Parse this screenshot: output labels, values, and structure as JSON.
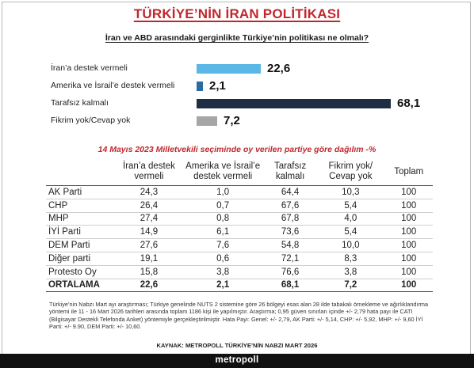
{
  "title": "TÜRKİYE’NİN İRAN POLİTİKASI",
  "question": "İran ve ABD arasındaki gerginlikte Türkiye’nin politikası ne olmalı?",
  "chart_data": [
    {
      "type": "bar",
      "orientation": "horizontal",
      "categories": [
        "İran’a destek vermeli",
        "Amerika ve İsrail’e destek vermeli",
        "Tarafsız kalmalı",
        "Fikrim yok/Cevap yok"
      ],
      "values": [
        22.6,
        2.1,
        68.1,
        7.2
      ],
      "value_labels": [
        "22,6",
        "2,1",
        "68,1",
        "7,2"
      ],
      "colors": [
        "#5bb7e5",
        "#2c6aa3",
        "#1d2e44",
        "#a6a6a6"
      ],
      "xlim": [
        0,
        70
      ],
      "grid": false,
      "legend": "none"
    },
    {
      "type": "table",
      "title": "14 Mayıs 2023 Milletvekili seçiminde oy verilen partiye göre dağılım -%",
      "columns": [
        "",
        "İran’a destek vermeli",
        "Amerika ve İsrail’e destek vermeli",
        "Tarafsız kalmalı",
        "Fikrim yok/ Cevap yok",
        "Toplam"
      ],
      "rows": [
        [
          "AK Parti",
          "24,3",
          "1,0",
          "64,4",
          "10,3",
          "100"
        ],
        [
          "CHP",
          "26,4",
          "0,7",
          "67,6",
          "5,4",
          "100"
        ],
        [
          "MHP",
          "27,4",
          "0,8",
          "67,8",
          "4,0",
          "100"
        ],
        [
          "İYİ Parti",
          "14,9",
          "6,1",
          "73,6",
          "5,4",
          "100"
        ],
        [
          "DEM Parti",
          "27,6",
          "7,6",
          "54,8",
          "10,0",
          "100"
        ],
        [
          "Diğer parti",
          "19,1",
          "0,6",
          "72,1",
          "8,3",
          "100"
        ],
        [
          "Protesto Oy",
          "15,8",
          "3,8",
          "76,6",
          "3,8",
          "100"
        ]
      ],
      "total_row": [
        "ORTALAMA",
        "22,6",
        "2,1",
        "68,1",
        "7,2",
        "100"
      ]
    }
  ],
  "footnote": "Türkiye’nin Nabzı Mart ayı araştırması; Türkiye genelinde NUTS 2 sistemine göre 26 bölgeyi esas alan 28 ilde tabakalı örnekleme ve ağırlıklandırma yöntemi ile 11 - 16 Mart 2026 tarihleri arasında toplam 1186 kişi ile yapılmıştır. Araştırma; 0,95 güven sınırları içinde +/- 2,79 hata payı ile CATI (Bilgisayar Destekli Telefonda Anket) yöntemiyle gerçekleştirilmiştir. Hata Payı: Genel: +/- 2,79, AK Parti: +/- 5,14, CHP: +/- 5,92, MHP: +/- 9,60 İYİ Parti: +/- 9.90, DEM Parti: +/- 10,60.",
  "source": "KAYNAK: METROPOLL TÜRKİYE’NİN NABZI MART 2026",
  "brand": "metropoll"
}
